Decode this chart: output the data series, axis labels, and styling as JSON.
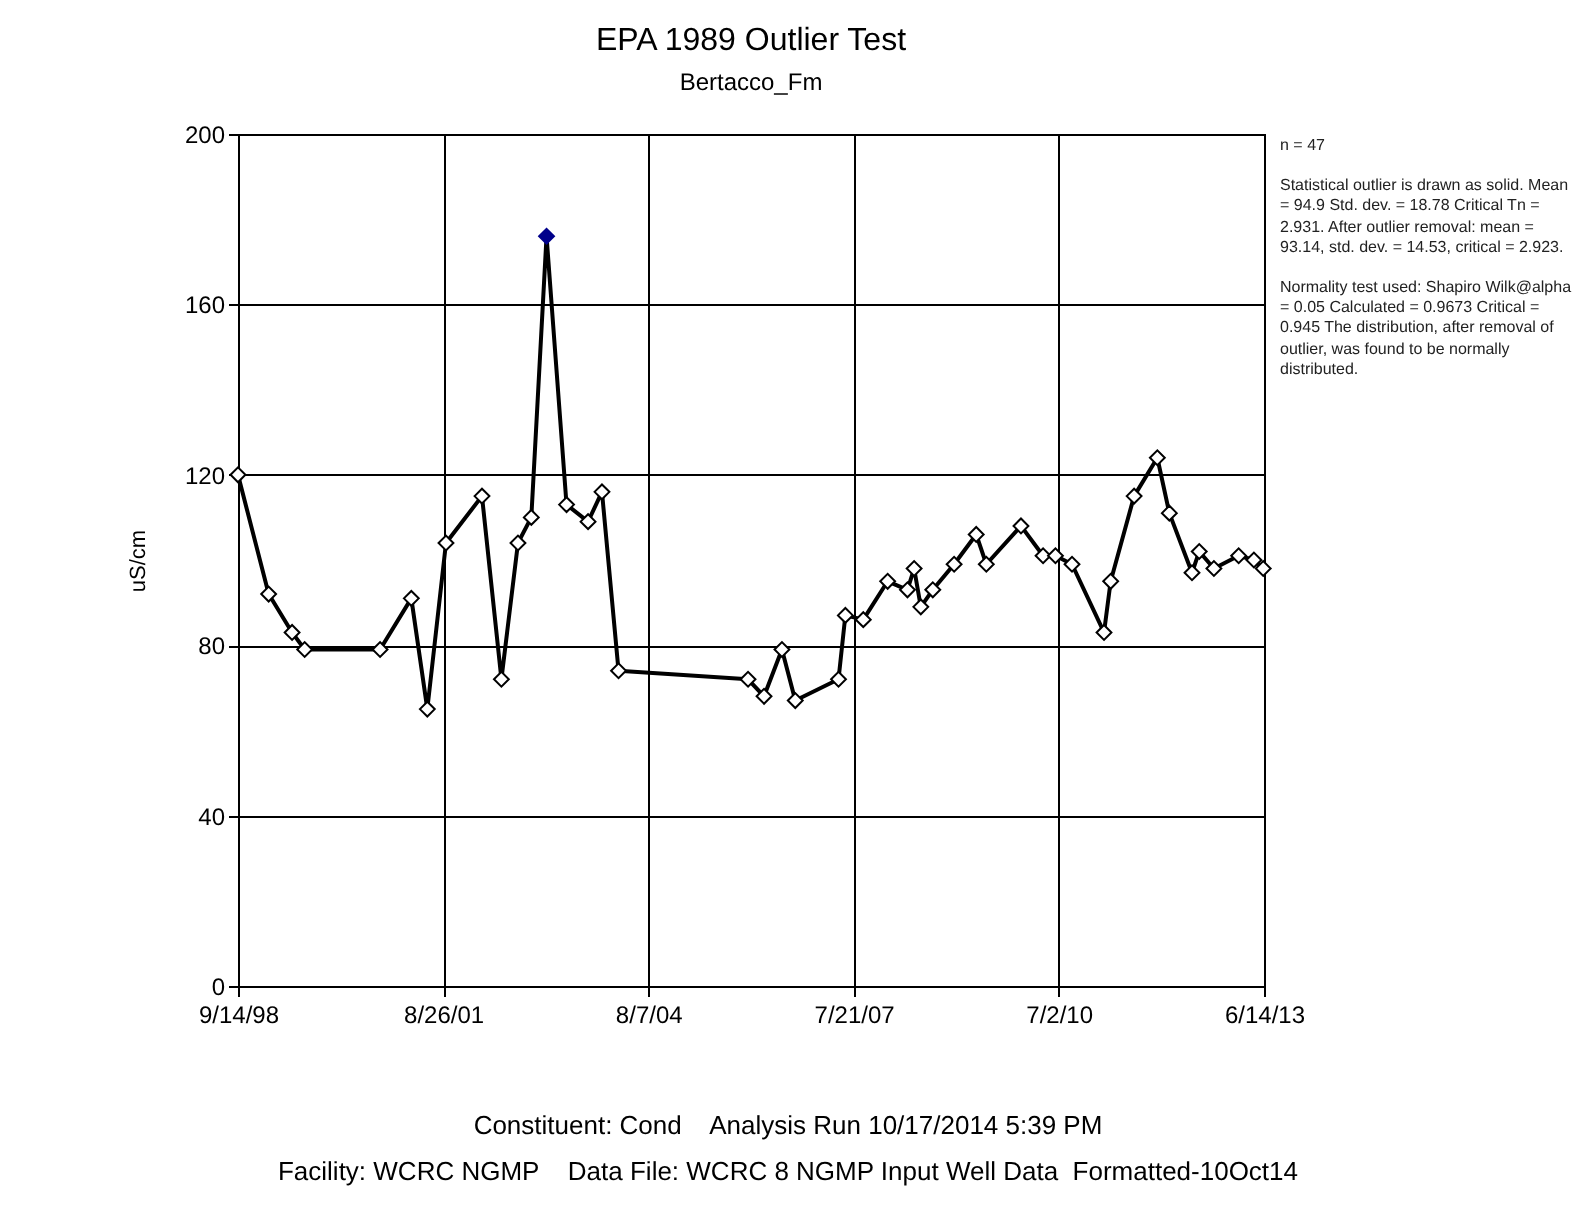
{
  "chart_data": {
    "type": "line",
    "title": "EPA 1989 Outlier Test",
    "subtitle": "Bertacco_Fm",
    "ylabel": "uS/cm",
    "x": [
      "1998-09-14",
      "1999-02-22",
      "1999-06-25",
      "1999-08-30",
      "2000-09-29",
      "2001-03-12",
      "2001-06-04",
      "2001-09-10",
      "2002-03-18",
      "2002-06-28",
      "2002-09-23",
      "2002-12-02",
      "2003-02-20",
      "2003-06-05",
      "2003-09-26",
      "2003-12-08",
      "2004-03-04",
      "2006-01-13",
      "2006-04-07",
      "2006-07-10",
      "2006-09-18",
      "2007-05-03",
      "2007-06-08",
      "2007-09-10",
      "2008-01-16",
      "2008-04-29",
      "2008-06-03",
      "2008-07-08",
      "2008-09-09",
      "2008-12-30",
      "2009-04-25",
      "2009-06-17",
      "2009-12-16",
      "2010-04-11",
      "2010-06-15",
      "2010-09-10",
      "2011-02-25",
      "2011-04-01",
      "2011-08-02",
      "2011-12-02",
      "2012-02-03",
      "2012-06-01",
      "2012-07-09",
      "2012-09-24",
      "2013-02-01",
      "2013-04-22",
      "2013-06-10"
    ],
    "series": [
      {
        "color": "#000000",
        "marker": "none",
        "values": [
          120,
          92,
          83,
          79,
          79,
          91,
          65,
          104,
          115,
          72,
          104,
          110,
          176,
          113,
          109,
          116,
          74,
          72,
          68,
          79,
          67,
          72,
          87,
          86,
          95,
          93,
          98,
          89,
          93,
          99,
          106,
          99,
          108,
          101,
          101,
          99,
          83,
          95,
          115,
          124,
          111,
          97,
          102,
          98,
          101,
          100,
          98
        ]
      },
      {
        "type": "scatter",
        "color": "#ffffff",
        "marker": "diamond",
        "x": [
          "1998-09-14",
          "1999-02-22",
          "1999-06-25",
          "1999-08-30",
          "2000-09-29",
          "2001-03-12",
          "2001-06-04",
          "2001-09-10",
          "2002-03-18",
          "2002-06-28",
          "2002-09-23",
          "2002-12-02",
          "2003-06-05",
          "2003-09-26",
          "2003-12-08",
          "2004-03-04",
          "2006-01-13",
          "2006-04-07",
          "2006-07-10",
          "2006-09-18",
          "2007-05-03",
          "2007-06-08",
          "2007-09-10",
          "2008-01-16",
          "2008-04-29",
          "2008-06-03",
          "2008-07-08",
          "2008-09-09",
          "2008-12-30",
          "2009-04-25",
          "2009-06-17",
          "2009-12-16",
          "2010-04-11",
          "2010-06-15",
          "2010-09-10",
          "2011-02-25",
          "2011-04-01",
          "2011-08-02",
          "2011-12-02",
          "2012-02-03",
          "2012-06-01",
          "2012-07-09",
          "2012-09-24",
          "2013-02-01",
          "2013-04-22",
          "2013-06-10"
        ],
        "values": [
          120,
          92,
          83,
          79,
          79,
          91,
          65,
          104,
          115,
          72,
          104,
          110,
          113,
          109,
          116,
          74,
          72,
          68,
          79,
          67,
          72,
          87,
          86,
          95,
          93,
          98,
          89,
          93,
          99,
          106,
          99,
          108,
          101,
          101,
          99,
          83,
          95,
          115,
          124,
          111,
          97,
          102,
          98,
          101,
          100,
          98
        ]
      },
      {
        "type": "scatter",
        "color": "#00008b",
        "marker": "diamond",
        "x": [
          "2003-02-20"
        ],
        "values": [
          176
        ]
      }
    ],
    "xlim": [
      "1998-09-14",
      "2013-06-14"
    ],
    "xticks": [
      {
        "value": "1998-09-14",
        "label": "9/14/98"
      },
      {
        "value": "2001-08-26",
        "label": "8/26/01"
      },
      {
        "value": "2004-08-07",
        "label": "8/7/04"
      },
      {
        "value": "2007-07-21",
        "label": "7/21/07"
      },
      {
        "value": "2010-07-02",
        "label": "7/2/10"
      },
      {
        "value": "2013-06-14",
        "label": "6/14/13"
      }
    ],
    "ylim": [
      0,
      200
    ],
    "yticks": [
      0,
      40,
      80,
      120,
      160,
      200
    ],
    "grid": true,
    "legend": false,
    "annotations": [
      "n = 47",
      "Statistical outlier is drawn as solid. Mean = 94.9 Std. dev. = 18.78 Critical Tn = 2.931. After outlier removal: mean = 93.14, std. dev. = 14.53, critical = 2.923.",
      "Normality test used: Shapiro Wilk@alpha = 0.05 Calculated = 0.9673 Critical = 0.945 The distribution, after removal of outlier, was found to be normally distributed.",
      "Constituent: Cond    Analysis Run 10/17/2014 5:39 PM",
      "Facility: WCRC NGMP    Data File: WCRC 8 NGMP Input Well Data  Formatted-10Oct14"
    ]
  }
}
